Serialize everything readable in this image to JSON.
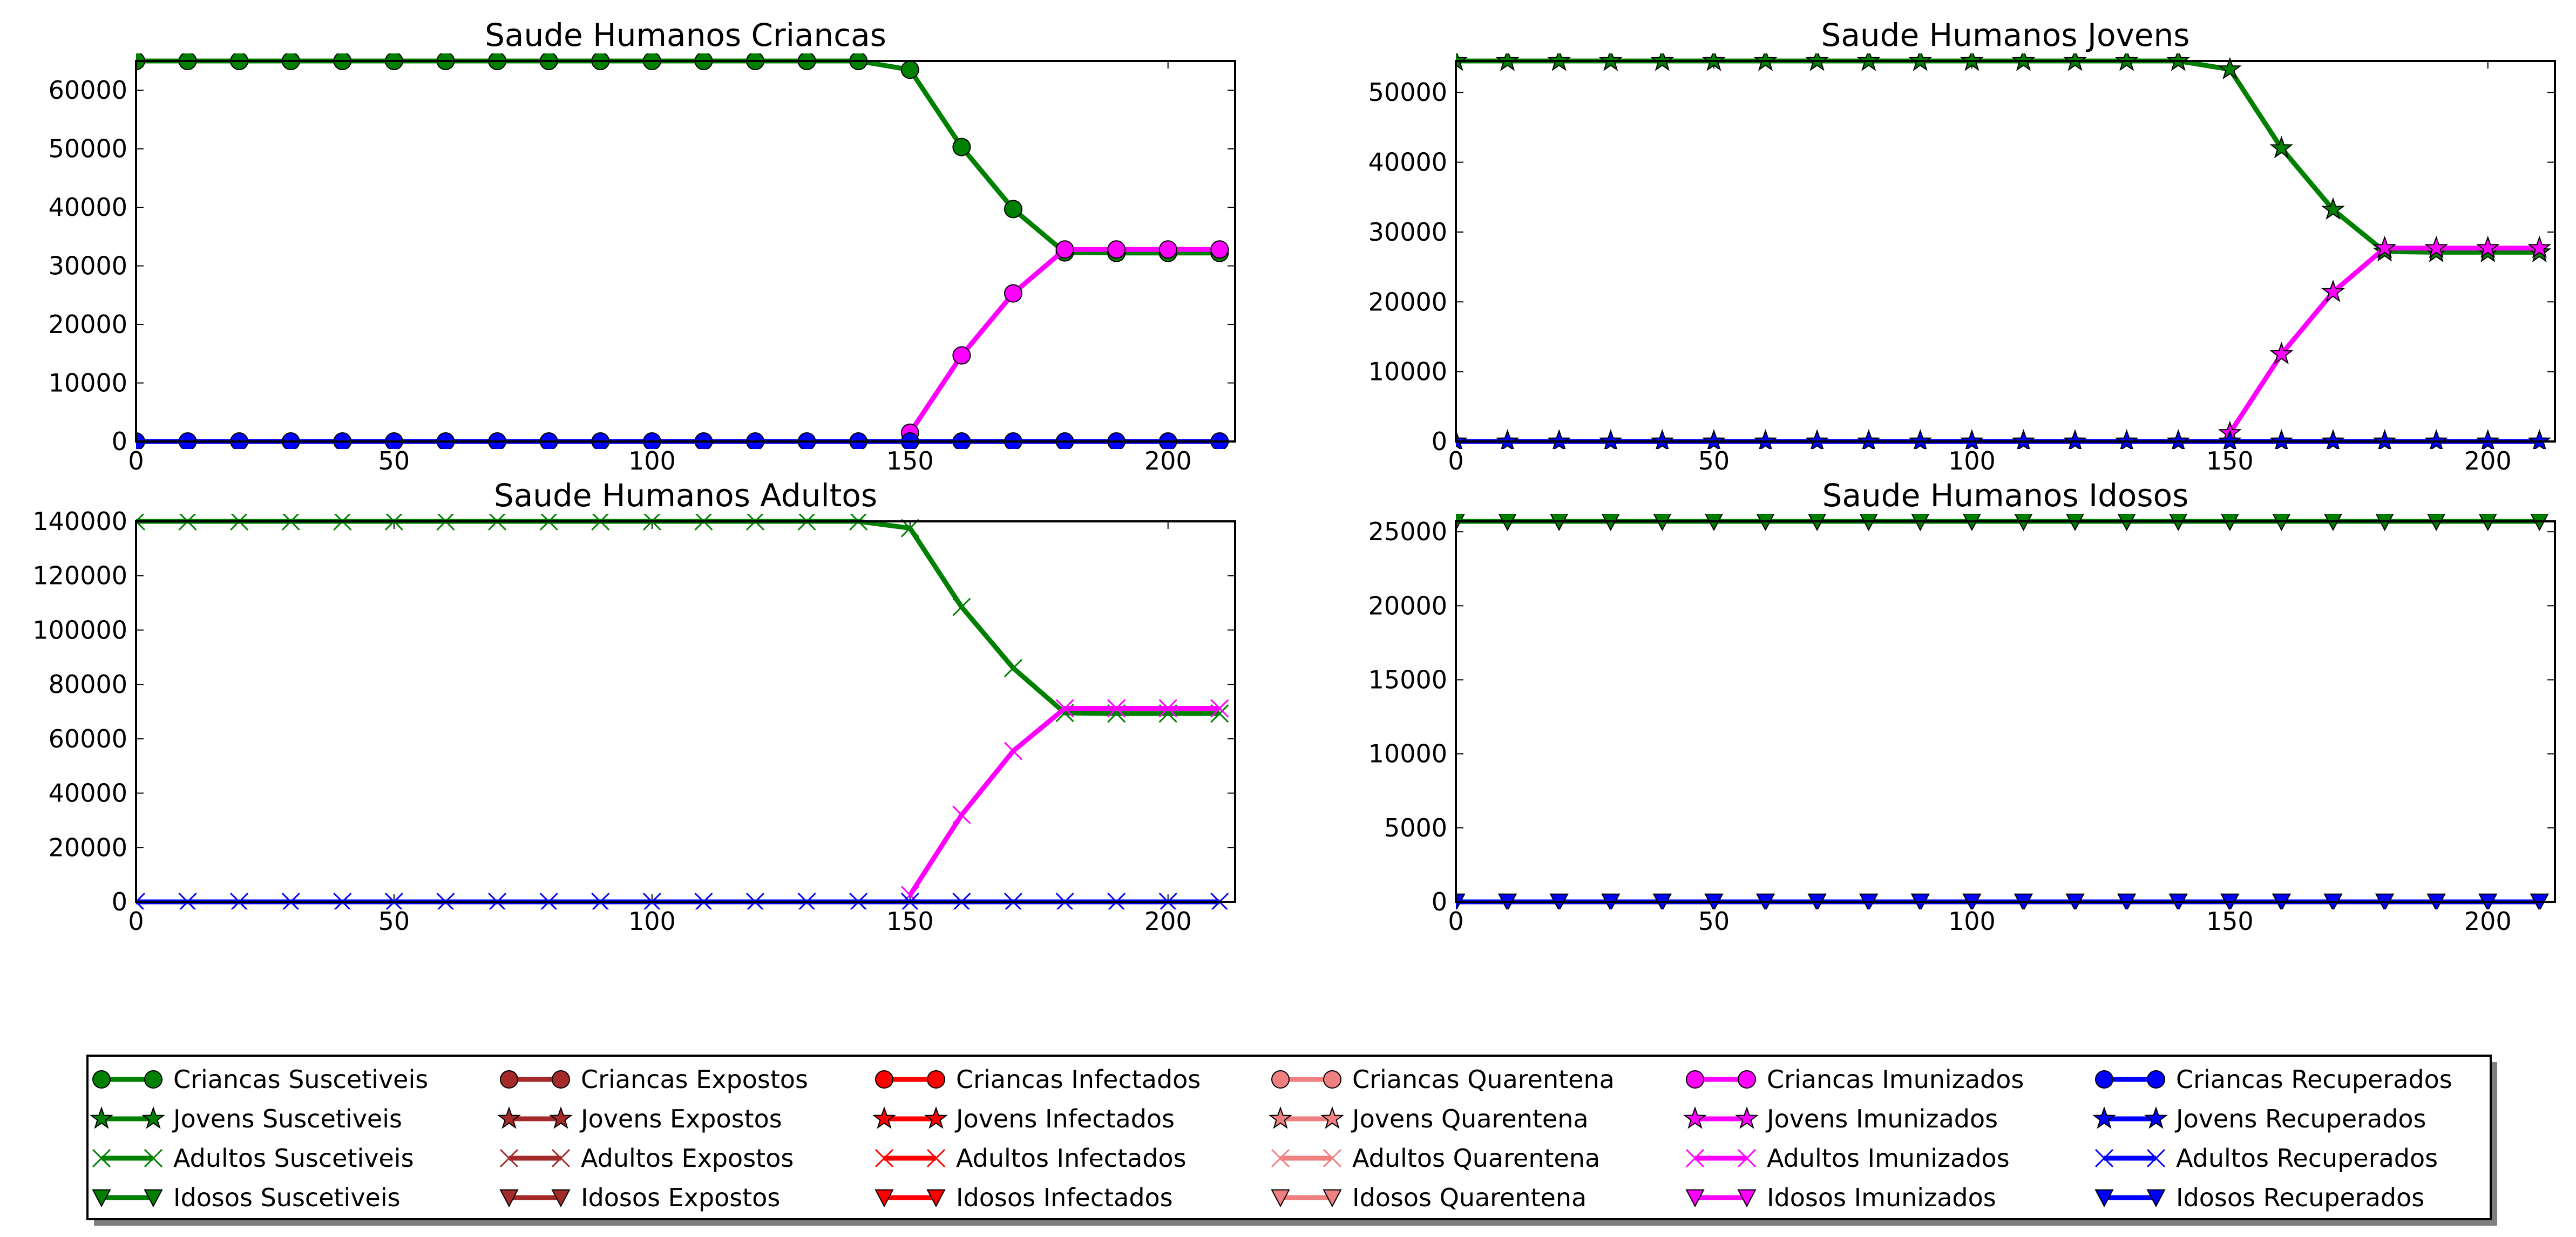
{
  "chart_data": [
    {
      "type": "line",
      "title": "Saude Humanos Criancas",
      "xlim": [
        0,
        213
      ],
      "ylim": [
        0,
        65000
      ],
      "xticks": [
        0,
        50,
        100,
        150,
        200
      ],
      "yticks": [
        0,
        10000,
        20000,
        30000,
        40000,
        50000,
        60000
      ],
      "marker": "circle",
      "series": [
        {
          "name": "Criancas Suscetiveis",
          "color": "#008000",
          "x": [
            0,
            10,
            20,
            30,
            40,
            50,
            60,
            70,
            80,
            90,
            100,
            110,
            120,
            130,
            140,
            150,
            160,
            170,
            180,
            190,
            200,
            210
          ],
          "y": [
            65000,
            65000,
            65000,
            65000,
            65000,
            65000,
            65000,
            65000,
            65000,
            65000,
            65000,
            65000,
            65000,
            65000,
            65000,
            63500,
            50300,
            39700,
            32300,
            32200,
            32200,
            32200
          ]
        },
        {
          "name": "Criancas Imunizados",
          "color": "#ff00ff",
          "x": [
            150,
            160,
            170,
            180,
            190,
            200,
            210
          ],
          "y": [
            1500,
            14700,
            25300,
            32800,
            32800,
            32800,
            32800
          ]
        },
        {
          "name": "Criancas Recuperados",
          "color": "#0000ff",
          "x": [
            0,
            10,
            20,
            30,
            40,
            50,
            60,
            70,
            80,
            90,
            100,
            110,
            120,
            130,
            140,
            150,
            160,
            170,
            180,
            190,
            200,
            210
          ],
          "y": [
            0,
            0,
            0,
            0,
            0,
            0,
            0,
            0,
            0,
            0,
            0,
            0,
            0,
            0,
            0,
            0,
            0,
            0,
            0,
            0,
            0,
            0
          ]
        }
      ]
    },
    {
      "type": "line",
      "title": "Saude Humanos Jovens",
      "xlim": [
        0,
        213
      ],
      "ylim": [
        0,
        54500
      ],
      "xticks": [
        0,
        50,
        100,
        150,
        200
      ],
      "yticks": [
        0,
        10000,
        20000,
        30000,
        40000,
        50000
      ],
      "marker": "star",
      "series": [
        {
          "name": "Jovens Suscetiveis",
          "color": "#008000",
          "x": [
            0,
            10,
            20,
            30,
            40,
            50,
            60,
            70,
            80,
            90,
            100,
            110,
            120,
            130,
            140,
            150,
            160,
            170,
            180,
            190,
            200,
            210
          ],
          "y": [
            54500,
            54500,
            54500,
            54500,
            54500,
            54500,
            54500,
            54500,
            54500,
            54500,
            54500,
            54500,
            54500,
            54500,
            54500,
            53300,
            42000,
            33200,
            27200,
            27100,
            27100,
            27100
          ]
        },
        {
          "name": "Jovens Imunizados",
          "color": "#ff00ff",
          "x": [
            150,
            160,
            170,
            180,
            190,
            200,
            210
          ],
          "y": [
            1200,
            12500,
            21400,
            27700,
            27700,
            27700,
            27700
          ]
        },
        {
          "name": "Jovens Recuperados",
          "color": "#0000ff",
          "x": [
            0,
            10,
            20,
            30,
            40,
            50,
            60,
            70,
            80,
            90,
            100,
            110,
            120,
            130,
            140,
            150,
            160,
            170,
            180,
            190,
            200,
            210
          ],
          "y": [
            0,
            0,
            0,
            0,
            0,
            0,
            0,
            0,
            0,
            0,
            0,
            0,
            0,
            0,
            0,
            0,
            0,
            0,
            0,
            0,
            0,
            0
          ]
        }
      ]
    },
    {
      "type": "line",
      "title": "Saude Humanos Adultos",
      "xlim": [
        0,
        213
      ],
      "ylim": [
        0,
        140000
      ],
      "xticks": [
        0,
        50,
        100,
        150,
        200
      ],
      "yticks": [
        0,
        20000,
        40000,
        60000,
        80000,
        100000,
        120000,
        140000
      ],
      "marker": "x",
      "series": [
        {
          "name": "Adultos Suscetiveis",
          "color": "#008000",
          "x": [
            0,
            10,
            20,
            30,
            40,
            50,
            60,
            70,
            80,
            90,
            100,
            110,
            120,
            130,
            140,
            150,
            160,
            170,
            180,
            190,
            200,
            210
          ],
          "y": [
            140000,
            140000,
            140000,
            140000,
            140000,
            140000,
            140000,
            140000,
            140000,
            140000,
            140000,
            140000,
            140000,
            140000,
            140000,
            137500,
            108500,
            86000,
            69500,
            69300,
            69300,
            69300
          ]
        },
        {
          "name": "Adultos Imunizados",
          "color": "#ff00ff",
          "x": [
            150,
            160,
            170,
            180,
            190,
            200,
            210
          ],
          "y": [
            2500,
            32000,
            55500,
            71200,
            71200,
            71200,
            71200
          ]
        },
        {
          "name": "Adultos Recuperados",
          "color": "#0000ff",
          "x": [
            0,
            10,
            20,
            30,
            40,
            50,
            60,
            70,
            80,
            90,
            100,
            110,
            120,
            130,
            140,
            150,
            160,
            170,
            180,
            190,
            200,
            210
          ],
          "y": [
            0,
            0,
            0,
            0,
            0,
            0,
            0,
            0,
            0,
            0,
            0,
            0,
            0,
            0,
            0,
            0,
            0,
            0,
            0,
            0,
            0,
            0
          ]
        }
      ]
    },
    {
      "type": "line",
      "title": "Saude Humanos Idosos",
      "xlim": [
        0,
        213
      ],
      "ylim": [
        0,
        25700
      ],
      "xticks": [
        0,
        50,
        100,
        150,
        200
      ],
      "yticks": [
        0,
        5000,
        10000,
        15000,
        20000,
        25000
      ],
      "marker": "triangle-down",
      "series": [
        {
          "name": "Idosos Suscetiveis",
          "color": "#008000",
          "x": [
            0,
            10,
            20,
            30,
            40,
            50,
            60,
            70,
            80,
            90,
            100,
            110,
            120,
            130,
            140,
            150,
            160,
            170,
            180,
            190,
            200,
            210
          ],
          "y": [
            25700,
            25700,
            25700,
            25700,
            25700,
            25700,
            25700,
            25700,
            25700,
            25700,
            25700,
            25700,
            25700,
            25700,
            25700,
            25700,
            25700,
            25700,
            25700,
            25700,
            25700,
            25700
          ]
        },
        {
          "name": "Idosos Recuperados",
          "color": "#0000ff",
          "x": [
            0,
            10,
            20,
            30,
            40,
            50,
            60,
            70,
            80,
            90,
            100,
            110,
            120,
            130,
            140,
            150,
            160,
            170,
            180,
            190,
            200,
            210
          ],
          "y": [
            0,
            0,
            0,
            0,
            0,
            0,
            0,
            0,
            0,
            0,
            0,
            0,
            0,
            0,
            0,
            0,
            0,
            0,
            0,
            0,
            0,
            0
          ]
        }
      ]
    }
  ],
  "legend": {
    "placement": "bottom",
    "columns": [
      {
        "color": "#008000",
        "items": [
          {
            "label": "Criancas Suscetiveis",
            "marker": "circle"
          },
          {
            "label": "Jovens Suscetiveis",
            "marker": "star"
          },
          {
            "label": "Adultos Suscetiveis",
            "marker": "x"
          },
          {
            "label": "Idosos Suscetiveis",
            "marker": "triangle-down"
          }
        ]
      },
      {
        "color": "#a52a2a",
        "items": [
          {
            "label": "Criancas Expostos",
            "marker": "circle"
          },
          {
            "label": "Jovens Expostos",
            "marker": "star"
          },
          {
            "label": "Adultos Expostos",
            "marker": "x"
          },
          {
            "label": "Idosos Expostos",
            "marker": "triangle-down"
          }
        ]
      },
      {
        "color": "#ff0000",
        "items": [
          {
            "label": "Criancas Infectados",
            "marker": "circle"
          },
          {
            "label": "Jovens Infectados",
            "marker": "star"
          },
          {
            "label": "Adultos Infectados",
            "marker": "x"
          },
          {
            "label": "Idosos Infectados",
            "marker": "triangle-down"
          }
        ]
      },
      {
        "color": "#f08080",
        "items": [
          {
            "label": "Criancas Quarentena",
            "marker": "circle"
          },
          {
            "label": "Jovens Quarentena",
            "marker": "star"
          },
          {
            "label": "Adultos Quarentena",
            "marker": "x"
          },
          {
            "label": "Idosos Quarentena",
            "marker": "triangle-down"
          }
        ]
      },
      {
        "color": "#ff00ff",
        "items": [
          {
            "label": "Criancas Imunizados",
            "marker": "circle"
          },
          {
            "label": "Jovens Imunizados",
            "marker": "star"
          },
          {
            "label": "Adultos Imunizados",
            "marker": "x"
          },
          {
            "label": "Idosos Imunizados",
            "marker": "triangle-down"
          }
        ]
      },
      {
        "color": "#0000ff",
        "items": [
          {
            "label": "Criancas Recuperados",
            "marker": "circle"
          },
          {
            "label": "Jovens Recuperados",
            "marker": "star"
          },
          {
            "label": "Adultos Recuperados",
            "marker": "x"
          },
          {
            "label": "Idosos Recuperados",
            "marker": "triangle-down"
          }
        ]
      }
    ]
  }
}
